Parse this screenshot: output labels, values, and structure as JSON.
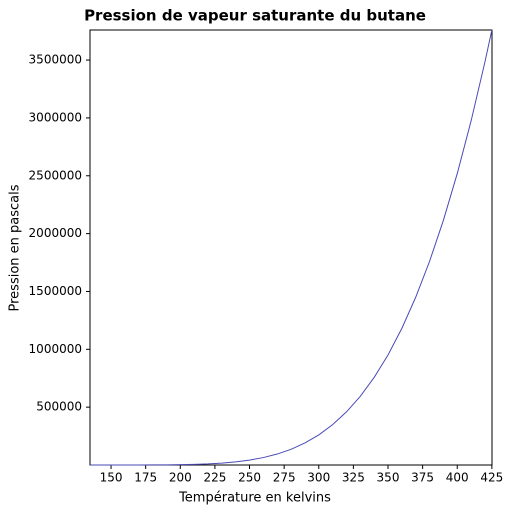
{
  "chart_data": {
    "type": "line",
    "title": "Pression de vapeur saturante du butane",
    "x_label": "Température en kelvins",
    "y_label": "Pression en pascals",
    "x": [
      135,
      150,
      160,
      170,
      180,
      190,
      200,
      210,
      220,
      230,
      240,
      250,
      260,
      270,
      280,
      290,
      300,
      310,
      320,
      330,
      340,
      350,
      360,
      370,
      380,
      390,
      400,
      410,
      420,
      425
    ],
    "series": [
      {
        "color": "#4a4ab8",
        "values": [
          3.9,
          29.6,
          92,
          250,
          610,
          1354,
          2767,
          5294,
          9550,
          16390,
          26850,
          42260,
          64260,
          94750,
          135700,
          190300,
          259900,
          348600,
          458700,
          593700,
          757000,
          951000,
          1181000,
          1450000,
          1760000,
          2115000,
          2519000,
          2974000,
          3484000,
          3760000
        ]
      }
    ],
    "xlim": [
      134.8,
      425.1
    ],
    "ylim": [
      0,
      3760000
    ],
    "xticks": [
      150,
      175,
      200,
      225,
      250,
      275,
      300,
      325,
      350,
      375,
      400,
      425
    ],
    "yticks": [
      500000,
      1000000,
      1500000,
      2000000,
      2500000,
      3000000,
      3500000
    ],
    "grid": false
  }
}
